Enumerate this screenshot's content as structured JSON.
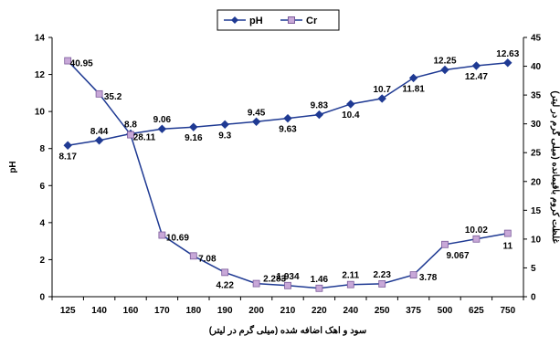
{
  "chart_data": {
    "type": "line",
    "categories": [
      "125",
      "140",
      "160",
      "170",
      "180",
      "190",
      "200",
      "210",
      "220",
      "240",
      "250",
      "375",
      "500",
      "625",
      "750"
    ],
    "xlabel": "سود و اهک اضافه شده (میلی گرم در لیتر)",
    "ylabel_left": "pH",
    "ylabel_right": "غلظت کروم باقیمانده (میلی گرم در لیتر)",
    "ylim_left": [
      0,
      14
    ],
    "ylim_right": [
      0,
      45
    ],
    "yticks_left": [
      "0",
      "2",
      "4",
      "6",
      "8",
      "10",
      "12",
      "14"
    ],
    "yticks_right": [
      "0",
      "5",
      "10",
      "15",
      "20",
      "25",
      "30",
      "35",
      "40",
      "45"
    ],
    "grid": false,
    "legend_position": "top",
    "series": [
      {
        "name": "pH",
        "axis": "left",
        "color": "#1F3A93",
        "marker": "diamond",
        "values": [
          8.17,
          8.44,
          8.8,
          9.06,
          9.16,
          9.3,
          9.45,
          9.63,
          9.83,
          10.4,
          10.7,
          11.81,
          12.25,
          12.47,
          12.63
        ],
        "labels": [
          "8.17",
          "8.44",
          "8.8",
          "9.06",
          "9.16",
          "9.3",
          "9.45",
          "9.63",
          "9.83",
          "10.4",
          "10.7",
          "11.81",
          "12.25",
          "12.47",
          "12.63"
        ]
      },
      {
        "name": "Cr",
        "axis": "right",
        "color": "#1F3A93",
        "marker": "square",
        "marker_fill": "#C8A8D8",
        "values": [
          40.95,
          35.2,
          28.11,
          10.69,
          7.08,
          4.22,
          2.283,
          1.934,
          1.46,
          2.11,
          2.23,
          3.78,
          9.067,
          10.02,
          11
        ],
        "labels": [
          "40.95",
          "35.2",
          "28.11",
          "10.69",
          "7.08",
          "4.22",
          "2.283",
          "1.934",
          "1.46",
          "2.11",
          "2.23",
          "3.78",
          "9.067",
          "10.02",
          "11"
        ]
      }
    ]
  }
}
